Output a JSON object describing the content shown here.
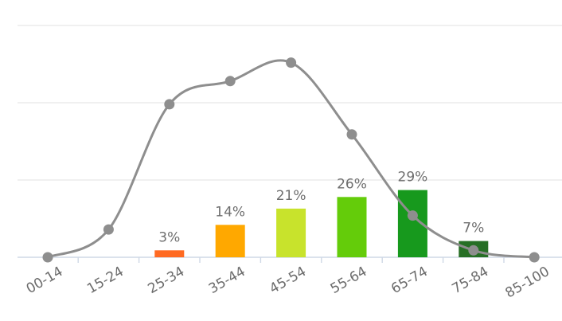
{
  "chart_data": {
    "type": "bar",
    "categories": [
      "00-14",
      "15-24",
      "25-34",
      "35-44",
      "45-54",
      "55-64",
      "65-74",
      "75-84",
      "85-100"
    ],
    "series": [
      {
        "values": [
          0,
          0,
          3,
          14,
          21,
          26,
          29,
          7,
          0
        ],
        "labels": [
          "",
          "",
          "3%",
          "14%",
          "21%",
          "26%",
          "29%",
          "7%",
          ""
        ],
        "colors": [
          "",
          "",
          "#ff6a22",
          "#ffa800",
          "#c8e32c",
          "#64cc0a",
          "#17991d",
          "#266f25",
          ""
        ]
      },
      {
        "type": "line",
        "smooth": true,
        "values": [
          0,
          12,
          66,
          76,
          84,
          53,
          18,
          3,
          0
        ],
        "color": "#8e8e8e"
      }
    ],
    "ylim": [
      0,
      100
    ],
    "grid": true,
    "legend": "none"
  }
}
